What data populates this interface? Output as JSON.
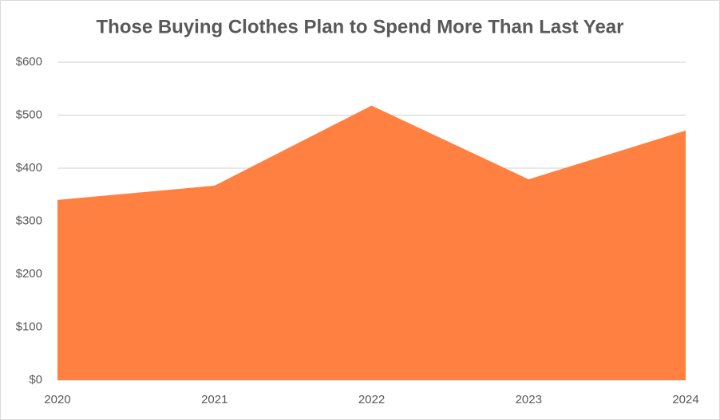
{
  "chart_data": {
    "type": "area",
    "title": "Those Buying Clothes Plan to Spend More Than Last Year",
    "categories": [
      "2020",
      "2021",
      "2022",
      "2023",
      "2024"
    ],
    "values": [
      340,
      367,
      518,
      379,
      471
    ],
    "color": "#ff8040",
    "ylim": [
      0,
      600
    ],
    "yticks": [
      {
        "value": 0,
        "label": "$0"
      },
      {
        "value": 100,
        "label": "$100"
      },
      {
        "value": 200,
        "label": "$200"
      },
      {
        "value": 300,
        "label": "$300"
      },
      {
        "value": 400,
        "label": "$400"
      },
      {
        "value": 500,
        "label": "$500"
      },
      {
        "value": 600,
        "label": "$600"
      }
    ],
    "grid": true
  }
}
